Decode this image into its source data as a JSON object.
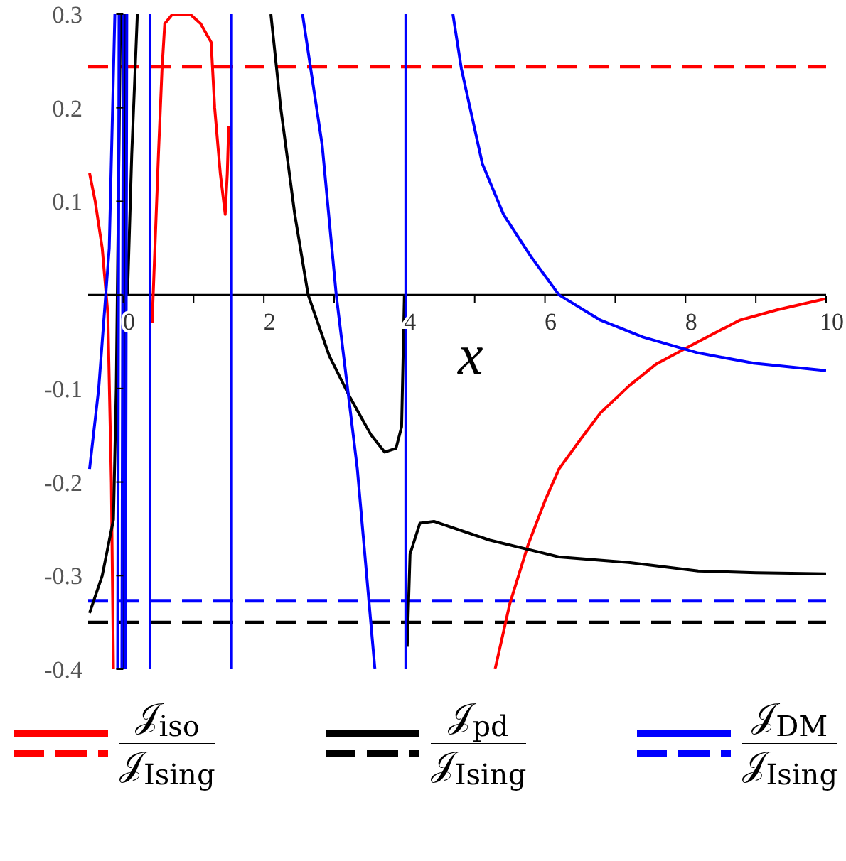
{
  "chart_data": {
    "type": "line",
    "xlabel": "x",
    "xlim": [
      -0.5,
      10
    ],
    "ylim": [
      -0.4,
      0.3
    ],
    "xticks": [
      0,
      {
        "value": 1,
        "label": null
      },
      2,
      {
        "value": 3,
        "label": null
      },
      4,
      {
        "value": 5,
        "label": null
      },
      6,
      {
        "value": 7,
        "label": null
      },
      8,
      {
        "value": 9,
        "label": null
      },
      10
    ],
    "yticks": [
      -0.4,
      -0.3,
      -0.2,
      -0.1,
      {
        "value": 0,
        "label": null
      },
      0.1,
      0.2,
      0.3
    ],
    "legend": "bottom",
    "line_style": "solid",
    "marker": "none",
    "series": [
      {
        "name": "𝒥$_{iso}$ 𝒥$_{Ising}$",
        "color": "#ff0000",
        "x": [
          -0.48,
          -0.4,
          -0.3,
          -0.22,
          -0.17,
          -0.14,
          null,
          0.41,
          0.45,
          0.5,
          0.55,
          0.59,
          0.7,
          0.81,
          0.95,
          1.1,
          1.25,
          1.3,
          1.38,
          1.45,
          1.48,
          1.5,
          null,
          5.29,
          5.5,
          5.76,
          6.0,
          6.2,
          6.5,
          6.79,
          7.2,
          7.58,
          8.18,
          8.77,
          9.3,
          10
        ],
        "values": [
          0.13,
          0.1,
          0.05,
          -0.02,
          -0.2,
          -0.4,
          null,
          -0.03,
          0.05,
          0.15,
          0.24,
          0.29,
          0.3,
          0.3,
          0.3,
          0.29,
          0.27,
          0.2,
          0.13,
          0.086,
          0.13,
          0.18,
          null,
          -0.4,
          -0.33,
          -0.267,
          -0.22,
          -0.186,
          -0.155,
          -0.126,
          -0.097,
          -0.074,
          -0.05,
          -0.027,
          -0.016,
          -0.004
        ]
      },
      {
        "name": "𝒥$_{pd}$ 𝒥$_{Ising}$",
        "color": "#000000",
        "x": [
          -0.48,
          -0.3,
          -0.14,
          -0.1,
          -0.04,
          null,
          0.0,
          0.02,
          null,
          0.06,
          0.12,
          0.2,
          null,
          2.1,
          2.24,
          2.44,
          2.63,
          2.93,
          3.23,
          3.52,
          3.72,
          3.88,
          3.96,
          4.0,
          null,
          4.04,
          4.08,
          4.22,
          4.42,
          5.21,
          6.2,
          7.19,
          8.18,
          9.0,
          10
        ],
        "values": [
          -0.34,
          -0.3,
          -0.24,
          -0.1,
          0.3,
          null,
          -0.4,
          0.3,
          null,
          0.0,
          0.15,
          0.3,
          null,
          0.3,
          0.2,
          0.086,
          0.0,
          -0.065,
          -0.11,
          -0.149,
          -0.168,
          -0.164,
          -0.141,
          0.0,
          null,
          -0.376,
          -0.277,
          -0.244,
          -0.242,
          -0.262,
          -0.28,
          -0.286,
          -0.295,
          -0.297,
          -0.298
        ]
      },
      {
        "name": "𝒥$_{DM}$ 𝒥$_{Ising}$",
        "color": "#0000ff",
        "x": [
          -0.48,
          -0.35,
          -0.2,
          -0.12,
          null,
          -0.08,
          -0.06,
          null,
          -0.02,
          0.0,
          null,
          0.03,
          0.05,
          null,
          0.38,
          0.38,
          null,
          1.54,
          1.54,
          null,
          2.55,
          2.83,
          3.03,
          3.33,
          3.58,
          null,
          4.02,
          4.02,
          null,
          4.69,
          4.81,
          5.11,
          5.41,
          5.8,
          6.2,
          6.79,
          7.39,
          8.18,
          8.97,
          10
        ],
        "values": [
          -0.186,
          -0.1,
          0.05,
          0.3,
          null,
          -0.4,
          0.3,
          null,
          -0.4,
          0.3,
          null,
          -0.4,
          0.3,
          null,
          -0.4,
          0.3,
          null,
          0.3,
          -0.4,
          null,
          0.3,
          0.16,
          0.0,
          -0.186,
          -0.4,
          null,
          -0.4,
          0.3,
          null,
          0.3,
          0.242,
          0.14,
          0.086,
          0.041,
          0.0,
          -0.027,
          -0.045,
          -0.062,
          -0.073,
          -0.081
        ]
      }
    ],
    "ref_lines": [
      {
        "axis": "y",
        "value": 0.244,
        "color": "#ff0000",
        "line_style": "dashed"
      },
      {
        "axis": "y",
        "value": -0.35,
        "color": "#000000",
        "line_style": "dashed"
      },
      {
        "axis": "y",
        "value": -0.327,
        "color": "#0000ff",
        "line_style": "dashed"
      }
    ]
  }
}
